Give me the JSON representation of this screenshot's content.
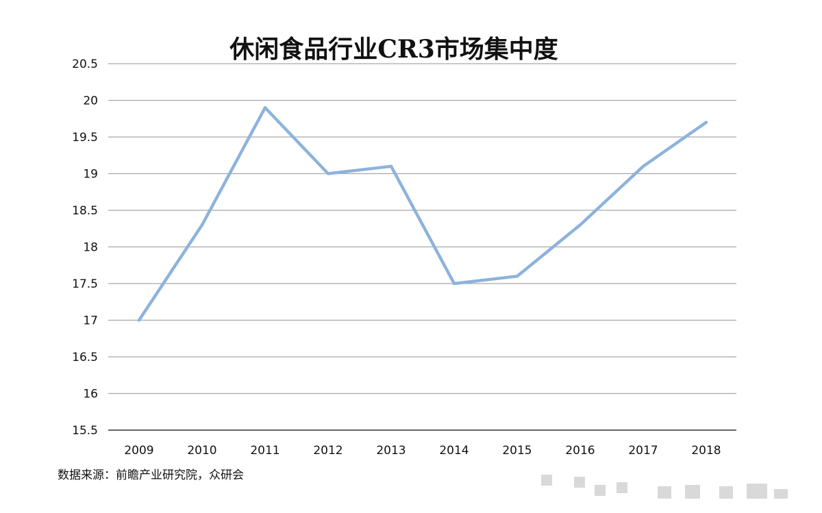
{
  "chart_data": {
    "type": "line",
    "title": "休闲食品行业CR3市场集中度",
    "xlabel": "",
    "ylabel": "",
    "categories": [
      "2009",
      "2010",
      "2011",
      "2012",
      "2013",
      "2014",
      "2015",
      "2016",
      "2017",
      "2018"
    ],
    "series": [
      {
        "values": [
          17.0,
          18.3,
          19.9,
          19.0,
          19.1,
          17.5,
          17.6,
          18.3,
          19.1,
          19.7
        ],
        "color": "#8db3dc"
      }
    ],
    "ylim": [
      15.5,
      20.5
    ],
    "yticks": [
      "20.5",
      "20",
      "19.5",
      "19",
      "18.5",
      "18",
      "17.5",
      "17",
      "16.5",
      "16",
      "15.5"
    ],
    "grid": true,
    "legend": "none"
  },
  "source": "数据来源：前瞻产业研究院，众研会"
}
